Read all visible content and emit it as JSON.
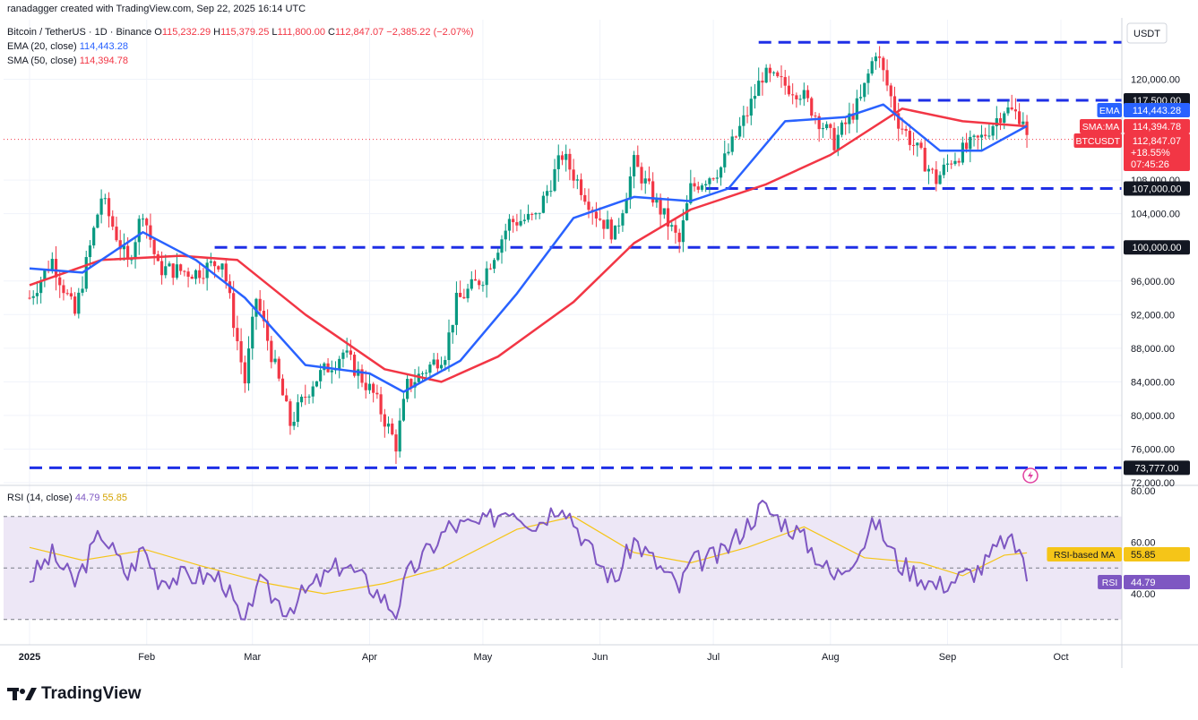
{
  "header": {
    "credit": "ranadagger created with TradingView.com, Sep 22, 2025 16:14 UTC",
    "symbol": "Bitcoin / TetherUS · 1D · Binance",
    "open_label": "O",
    "open": "115,232.29",
    "high_label": "H",
    "high": "115,379.25",
    "low_label": "L",
    "low": "111,800.00",
    "close_label": "C",
    "close": "112,847.07",
    "change": "−2,385.22 (−2.07%)",
    "ema_label": "EMA (20, close)",
    "ema_value": "114,443.28",
    "sma_label": "SMA (50, close)",
    "sma_value": "114,394.78"
  },
  "footer": {
    "brand": "TradingView"
  },
  "colors": {
    "up": "#089981",
    "down": "#f23645",
    "ema": "#2962ff",
    "sma": "#f23645",
    "level": "#1e2fe6",
    "rsi": "#7e57c2",
    "rsi_ma": "#f5c518",
    "rsi_band": "#ede7f6"
  },
  "chart_data": [
    {
      "type": "candlestick",
      "currency": "USDT",
      "x_months": [
        "2025",
        "Feb",
        "Mar",
        "Apr",
        "May",
        "Jun",
        "Jul",
        "Aug",
        "Sep",
        "Oct"
      ],
      "y_ticks": [
        "120,000.00",
        "108,000.00",
        "104,000.00",
        "96,000.00",
        "92,000.00",
        "88,000.00",
        "84,000.00",
        "80,000.00",
        "76,000.00",
        "72,000.00"
      ],
      "ylim": [
        72000,
        124000
      ],
      "levels": [
        {
          "price": 124400,
          "from": "2025-07-13"
        },
        {
          "price": 117500,
          "label": "117,500.00",
          "from": "2025-08-19"
        },
        {
          "price": 107000,
          "label": "107,000.00",
          "from": "2025-06-29"
        },
        {
          "price": 100000,
          "label": "100,000.00",
          "from": "2025-02-19"
        },
        {
          "price": 73777,
          "label": "73,777.00",
          "from": "2025-01-01"
        }
      ],
      "price_tags": [
        {
          "name": "EMA",
          "value": "114,443.28"
        },
        {
          "name": "SMA:MA",
          "value": "114,394.78"
        },
        {
          "name": "BTCUSDT",
          "value": "112,847.07",
          "change": "+18.55%",
          "countdown": "07:45:26"
        }
      ],
      "key_points": [
        {
          "date": "2025-01-01",
          "price": 94000
        },
        {
          "date": "2025-01-07",
          "price": 98500
        },
        {
          "date": "2025-01-13",
          "price": 92000
        },
        {
          "date": "2025-01-20",
          "price": 106000
        },
        {
          "date": "2025-01-27",
          "price": 98000
        },
        {
          "date": "2025-01-31",
          "price": 104500
        },
        {
          "date": "2025-02-04",
          "price": 97500
        },
        {
          "date": "2025-02-14",
          "price": 97000
        },
        {
          "date": "2025-02-21",
          "price": 98500
        },
        {
          "date": "2025-02-27",
          "price": 84000
        },
        {
          "date": "2025-03-02",
          "price": 94000
        },
        {
          "date": "2025-03-11",
          "price": 79000
        },
        {
          "date": "2025-03-17",
          "price": 84000
        },
        {
          "date": "2025-03-25",
          "price": 87500
        },
        {
          "date": "2025-04-02",
          "price": 82500
        },
        {
          "date": "2025-04-08",
          "price": 76500
        },
        {
          "date": "2025-04-11",
          "price": 83500
        },
        {
          "date": "2025-04-21",
          "price": 87500
        },
        {
          "date": "2025-04-24",
          "price": 93500
        },
        {
          "date": "2025-05-01",
          "price": 96500
        },
        {
          "date": "2025-05-08",
          "price": 103000
        },
        {
          "date": "2025-05-15",
          "price": 103500
        },
        {
          "date": "2025-05-22",
          "price": 111000
        },
        {
          "date": "2025-05-31",
          "price": 104000
        },
        {
          "date": "2025-06-05",
          "price": 101500
        },
        {
          "date": "2025-06-10",
          "price": 110000
        },
        {
          "date": "2025-06-22",
          "price": 100500
        },
        {
          "date": "2025-06-25",
          "price": 107000
        },
        {
          "date": "2025-07-03",
          "price": 109500
        },
        {
          "date": "2025-07-10",
          "price": 116000
        },
        {
          "date": "2025-07-14",
          "price": 120500
        },
        {
          "date": "2025-07-24",
          "price": 118500
        },
        {
          "date": "2025-08-02",
          "price": 112500
        },
        {
          "date": "2025-08-09",
          "price": 117500
        },
        {
          "date": "2025-08-13",
          "price": 123500
        },
        {
          "date": "2025-08-19",
          "price": 115000
        },
        {
          "date": "2025-08-29",
          "price": 108000
        },
        {
          "date": "2025-09-02",
          "price": 110500
        },
        {
          "date": "2025-09-10",
          "price": 113000
        },
        {
          "date": "2025-09-16",
          "price": 116500
        },
        {
          "date": "2025-09-21",
          "price": 115500
        },
        {
          "date": "2025-09-22",
          "price": 112847
        }
      ],
      "ema20_points": [
        {
          "date": "2025-01-01",
          "price": 97500
        },
        {
          "date": "2025-01-15",
          "price": 97000
        },
        {
          "date": "2025-01-31",
          "price": 101800
        },
        {
          "date": "2025-02-14",
          "price": 98500
        },
        {
          "date": "2025-02-27",
          "price": 94000
        },
        {
          "date": "2025-03-15",
          "price": 86000
        },
        {
          "date": "2025-04-01",
          "price": 85000
        },
        {
          "date": "2025-04-10",
          "price": 82800
        },
        {
          "date": "2025-04-25",
          "price": 86500
        },
        {
          "date": "2025-05-10",
          "price": 94500
        },
        {
          "date": "2025-05-25",
          "price": 103500
        },
        {
          "date": "2025-06-10",
          "price": 106000
        },
        {
          "date": "2025-06-25",
          "price": 105500
        },
        {
          "date": "2025-07-05",
          "price": 107000
        },
        {
          "date": "2025-07-20",
          "price": 115000
        },
        {
          "date": "2025-08-05",
          "price": 115500
        },
        {
          "date": "2025-08-15",
          "price": 117000
        },
        {
          "date": "2025-08-30",
          "price": 111500
        },
        {
          "date": "2025-09-10",
          "price": 111500
        },
        {
          "date": "2025-09-22",
          "price": 114443
        }
      ],
      "sma50_points": [
        {
          "date": "2025-01-01",
          "price": 95500
        },
        {
          "date": "2025-01-20",
          "price": 98500
        },
        {
          "date": "2025-02-10",
          "price": 99000
        },
        {
          "date": "2025-02-25",
          "price": 98500
        },
        {
          "date": "2025-03-15",
          "price": 92000
        },
        {
          "date": "2025-04-05",
          "price": 85500
        },
        {
          "date": "2025-04-20",
          "price": 84000
        },
        {
          "date": "2025-05-05",
          "price": 87000
        },
        {
          "date": "2025-05-25",
          "price": 93500
        },
        {
          "date": "2025-06-10",
          "price": 100500
        },
        {
          "date": "2025-06-25",
          "price": 104500
        },
        {
          "date": "2025-07-15",
          "price": 107500
        },
        {
          "date": "2025-08-01",
          "price": 111000
        },
        {
          "date": "2025-08-20",
          "price": 116500
        },
        {
          "date": "2025-09-05",
          "price": 115000
        },
        {
          "date": "2025-09-22",
          "price": 114395
        }
      ]
    },
    {
      "type": "line",
      "title": "RSI (14, close)",
      "values_shown": {
        "rsi": "44.79",
        "rsi_ma": "55.85"
      },
      "y_ticks": [
        "80.00",
        "60.00",
        "40.00"
      ],
      "ylim": [
        22,
        80
      ],
      "band": [
        30,
        70
      ],
      "mid": 50,
      "tags": [
        {
          "name": "RSI-based MA",
          "value": "55.85"
        },
        {
          "name": "RSI",
          "value": "44.79"
        }
      ],
      "rsi_points": [
        {
          "date": "2025-01-01",
          "value": 46
        },
        {
          "date": "2025-01-07",
          "value": 55
        },
        {
          "date": "2025-01-13",
          "value": 44
        },
        {
          "date": "2025-01-20",
          "value": 64
        },
        {
          "date": "2025-01-27",
          "value": 47
        },
        {
          "date": "2025-01-31",
          "value": 58
        },
        {
          "date": "2025-02-04",
          "value": 46
        },
        {
          "date": "2025-02-14",
          "value": 47
        },
        {
          "date": "2025-02-21",
          "value": 46
        },
        {
          "date": "2025-02-27",
          "value": 26
        },
        {
          "date": "2025-03-02",
          "value": 45
        },
        {
          "date": "2025-03-10",
          "value": 34
        },
        {
          "date": "2025-03-17",
          "value": 43
        },
        {
          "date": "2025-03-25",
          "value": 52
        },
        {
          "date": "2025-04-02",
          "value": 42
        },
        {
          "date": "2025-04-08",
          "value": 33
        },
        {
          "date": "2025-04-11",
          "value": 47
        },
        {
          "date": "2025-04-22",
          "value": 66
        },
        {
          "date": "2025-05-01",
          "value": 67
        },
        {
          "date": "2025-05-08",
          "value": 74
        },
        {
          "date": "2025-05-15",
          "value": 67
        },
        {
          "date": "2025-05-22",
          "value": 76
        },
        {
          "date": "2025-05-31",
          "value": 53
        },
        {
          "date": "2025-06-05",
          "value": 45
        },
        {
          "date": "2025-06-10",
          "value": 61
        },
        {
          "date": "2025-06-22",
          "value": 42
        },
        {
          "date": "2025-06-25",
          "value": 52
        },
        {
          "date": "2025-07-03",
          "value": 55
        },
        {
          "date": "2025-07-10",
          "value": 67
        },
        {
          "date": "2025-07-14",
          "value": 74
        },
        {
          "date": "2025-07-24",
          "value": 63
        },
        {
          "date": "2025-08-02",
          "value": 46
        },
        {
          "date": "2025-08-09",
          "value": 58
        },
        {
          "date": "2025-08-13",
          "value": 68
        },
        {
          "date": "2025-08-19",
          "value": 52
        },
        {
          "date": "2025-08-29",
          "value": 43
        },
        {
          "date": "2025-09-02",
          "value": 45
        },
        {
          "date": "2025-09-10",
          "value": 50
        },
        {
          "date": "2025-09-16",
          "value": 61
        },
        {
          "date": "2025-09-21",
          "value": 56
        },
        {
          "date": "2025-09-22",
          "value": 44.79
        }
      ],
      "rsi_ma_points": [
        {
          "date": "2025-01-01",
          "value": 58
        },
        {
          "date": "2025-01-15",
          "value": 53
        },
        {
          "date": "2025-02-01",
          "value": 57
        },
        {
          "date": "2025-02-15",
          "value": 51
        },
        {
          "date": "2025-03-05",
          "value": 44
        },
        {
          "date": "2025-03-20",
          "value": 40
        },
        {
          "date": "2025-04-05",
          "value": 44
        },
        {
          "date": "2025-04-20",
          "value": 50
        },
        {
          "date": "2025-05-10",
          "value": 65
        },
        {
          "date": "2025-05-25",
          "value": 70
        },
        {
          "date": "2025-06-10",
          "value": 56
        },
        {
          "date": "2025-06-25",
          "value": 52
        },
        {
          "date": "2025-07-10",
          "value": 58
        },
        {
          "date": "2025-07-25",
          "value": 66
        },
        {
          "date": "2025-08-10",
          "value": 54
        },
        {
          "date": "2025-08-25",
          "value": 52
        },
        {
          "date": "2025-09-05",
          "value": 47
        },
        {
          "date": "2025-09-16",
          "value": 55
        },
        {
          "date": "2025-09-22",
          "value": 55.85
        }
      ]
    }
  ]
}
